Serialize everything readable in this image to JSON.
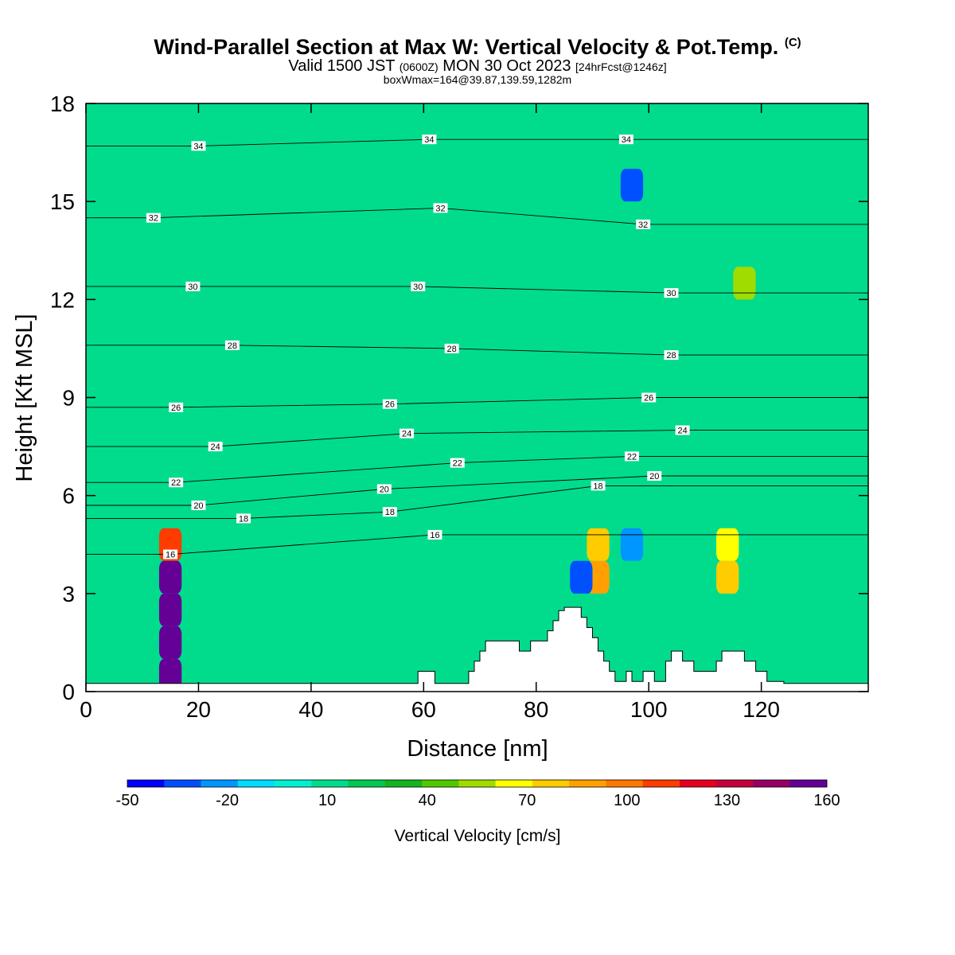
{
  "title": {
    "main": "Wind-Parallel Section at Max W: Vertical Velocity & Pot.Temp.",
    "copyright_mark": "(C)",
    "valid_prefix": "Valid 1500 JST",
    "valid_utc": "(0600Z)",
    "valid_date": "MON 30 Oct 2023",
    "forecast": "[24hrFcst@1246z]",
    "box_info": "boxWmax=164@39.87,139.59,1282m"
  },
  "chart_data": {
    "type": "heatmap",
    "xlabel": "Distance [nm]",
    "ylabel": "Height [Kft MSL]",
    "xlim": [
      0,
      139
    ],
    "ylim": [
      0,
      18
    ],
    "x_ticks": [
      "0",
      "20",
      "40",
      "60",
      "80",
      "100",
      "120"
    ],
    "y_ticks": [
      "0",
      "3",
      "6",
      "9",
      "12",
      "15",
      "18"
    ],
    "background_value": 0,
    "colorbar": {
      "label": "Vertical Velocity [cm/s]",
      "tick_labels": [
        "-50",
        "-20",
        "10",
        "40",
        "70",
        "100",
        "130",
        "160"
      ],
      "min": -50,
      "max": 160,
      "step": 10,
      "colors": [
        "#0000ff",
        "#0050ff",
        "#0096ff",
        "#00dcff",
        "#00f0d2",
        "#00dc8c",
        "#00c850",
        "#14b41e",
        "#50c800",
        "#a0dc00",
        "#ffff00",
        "#ffcc00",
        "#ffa000",
        "#ff7800",
        "#ff3c00",
        "#e6001e",
        "#c3003c",
        "#960064",
        "#640096"
      ]
    },
    "cells": [
      {
        "x": 15,
        "y": 0.5,
        "v": 160
      },
      {
        "x": 15,
        "y": 1.5,
        "v": 150
      },
      {
        "x": 15,
        "y": 2.5,
        "v": 130
      },
      {
        "x": 15,
        "y": 3.5,
        "v": 140
      },
      {
        "x": 15,
        "y": 4.5,
        "v": 90
      },
      {
        "x": 91,
        "y": 3.5,
        "v": 70
      },
      {
        "x": 91,
        "y": 4.5,
        "v": 60
      },
      {
        "x": 114,
        "y": 3.5,
        "v": 60
      },
      {
        "x": 114,
        "y": 4.5,
        "v": 50
      },
      {
        "x": 97,
        "y": 15.5,
        "v": -40
      },
      {
        "x": 97,
        "y": 4.5,
        "v": -30
      },
      {
        "x": 88,
        "y": 3.5,
        "v": -40
      },
      {
        "x": 117,
        "y": 12.5,
        "v": 40
      }
    ],
    "pot_temp_contours": [
      {
        "label": "16",
        "x": 15,
        "y": 4.2
      },
      {
        "label": "16",
        "x": 62,
        "y": 4.8
      },
      {
        "label": "18",
        "x": 28,
        "y": 5.3
      },
      {
        "label": "18",
        "x": 54,
        "y": 5.5
      },
      {
        "label": "18",
        "x": 91,
        "y": 6.3
      },
      {
        "label": "20",
        "x": 20,
        "y": 5.7
      },
      {
        "label": "20",
        "x": 53,
        "y": 6.2
      },
      {
        "label": "20",
        "x": 101,
        "y": 6.6
      },
      {
        "label": "22",
        "x": 16,
        "y": 6.4
      },
      {
        "label": "22",
        "x": 66,
        "y": 7.0
      },
      {
        "label": "22",
        "x": 97,
        "y": 7.2
      },
      {
        "label": "24",
        "x": 23,
        "y": 7.5
      },
      {
        "label": "24",
        "x": 57,
        "y": 7.9
      },
      {
        "label": "24",
        "x": 106,
        "y": 8.0
      },
      {
        "label": "26",
        "x": 16,
        "y": 8.7
      },
      {
        "label": "26",
        "x": 54,
        "y": 8.8
      },
      {
        "label": "26",
        "x": 100,
        "y": 9.0
      },
      {
        "label": "28",
        "x": 26,
        "y": 10.6
      },
      {
        "label": "28",
        "x": 65,
        "y": 10.5
      },
      {
        "label": "28",
        "x": 104,
        "y": 10.3
      },
      {
        "label": "30",
        "x": 19,
        "y": 12.4
      },
      {
        "label": "30",
        "x": 59,
        "y": 12.4
      },
      {
        "label": "30",
        "x": 104,
        "y": 12.2
      },
      {
        "label": "32",
        "x": 12,
        "y": 14.5
      },
      {
        "label": "32",
        "x": 63,
        "y": 14.8
      },
      {
        "label": "32",
        "x": 99,
        "y": 14.3
      },
      {
        "label": "34",
        "x": 20,
        "y": 16.7
      },
      {
        "label": "34",
        "x": 61,
        "y": 16.9
      },
      {
        "label": "34",
        "x": 96,
        "y": 16.9
      }
    ],
    "terrain": [
      {
        "x": 0,
        "y": 0.25
      },
      {
        "x": 59,
        "y": 0.25
      },
      {
        "x": 59,
        "y": 0.62
      },
      {
        "x": 62,
        "y": 0.62
      },
      {
        "x": 62,
        "y": 0.25
      },
      {
        "x": 68,
        "y": 0.25
      },
      {
        "x": 68,
        "y": 0.62
      },
      {
        "x": 69,
        "y": 0.62
      },
      {
        "x": 69,
        "y": 0.93
      },
      {
        "x": 70,
        "y": 0.93
      },
      {
        "x": 70,
        "y": 1.24
      },
      {
        "x": 71,
        "y": 1.24
      },
      {
        "x": 71,
        "y": 1.55
      },
      {
        "x": 77,
        "y": 1.55
      },
      {
        "x": 77,
        "y": 1.24
      },
      {
        "x": 79,
        "y": 1.24
      },
      {
        "x": 79,
        "y": 1.55
      },
      {
        "x": 82,
        "y": 1.55
      },
      {
        "x": 82,
        "y": 1.86
      },
      {
        "x": 83,
        "y": 1.86
      },
      {
        "x": 83,
        "y": 2.17
      },
      {
        "x": 84,
        "y": 2.17
      },
      {
        "x": 84,
        "y": 2.48
      },
      {
        "x": 85,
        "y": 2.48
      },
      {
        "x": 85,
        "y": 2.58
      },
      {
        "x": 88,
        "y": 2.58
      },
      {
        "x": 88,
        "y": 2.27
      },
      {
        "x": 89,
        "y": 2.27
      },
      {
        "x": 89,
        "y": 1.96
      },
      {
        "x": 90,
        "y": 1.96
      },
      {
        "x": 90,
        "y": 1.65
      },
      {
        "x": 91,
        "y": 1.65
      },
      {
        "x": 91,
        "y": 1.24
      },
      {
        "x": 92,
        "y": 1.24
      },
      {
        "x": 92,
        "y": 0.93
      },
      {
        "x": 93,
        "y": 0.93
      },
      {
        "x": 93,
        "y": 0.62
      },
      {
        "x": 94,
        "y": 0.62
      },
      {
        "x": 94,
        "y": 0.31
      },
      {
        "x": 96,
        "y": 0.31
      },
      {
        "x": 96,
        "y": 0.62
      },
      {
        "x": 97,
        "y": 0.62
      },
      {
        "x": 97,
        "y": 0.31
      },
      {
        "x": 99,
        "y": 0.31
      },
      {
        "x": 99,
        "y": 0.62
      },
      {
        "x": 101,
        "y": 0.62
      },
      {
        "x": 101,
        "y": 0.31
      },
      {
        "x": 103,
        "y": 0.31
      },
      {
        "x": 103,
        "y": 0.93
      },
      {
        "x": 104,
        "y": 0.93
      },
      {
        "x": 104,
        "y": 1.24
      },
      {
        "x": 106,
        "y": 1.24
      },
      {
        "x": 106,
        "y": 0.93
      },
      {
        "x": 108,
        "y": 0.93
      },
      {
        "x": 108,
        "y": 0.62
      },
      {
        "x": 112,
        "y": 0.62
      },
      {
        "x": 112,
        "y": 0.93
      },
      {
        "x": 113,
        "y": 0.93
      },
      {
        "x": 113,
        "y": 1.24
      },
      {
        "x": 117,
        "y": 1.24
      },
      {
        "x": 117,
        "y": 0.93
      },
      {
        "x": 119,
        "y": 0.93
      },
      {
        "x": 119,
        "y": 0.62
      },
      {
        "x": 121,
        "y": 0.62
      },
      {
        "x": 121,
        "y": 0.31
      },
      {
        "x": 124,
        "y": 0.31
      },
      {
        "x": 124,
        "y": 0.25
      },
      {
        "x": 139,
        "y": 0.25
      }
    ]
  }
}
